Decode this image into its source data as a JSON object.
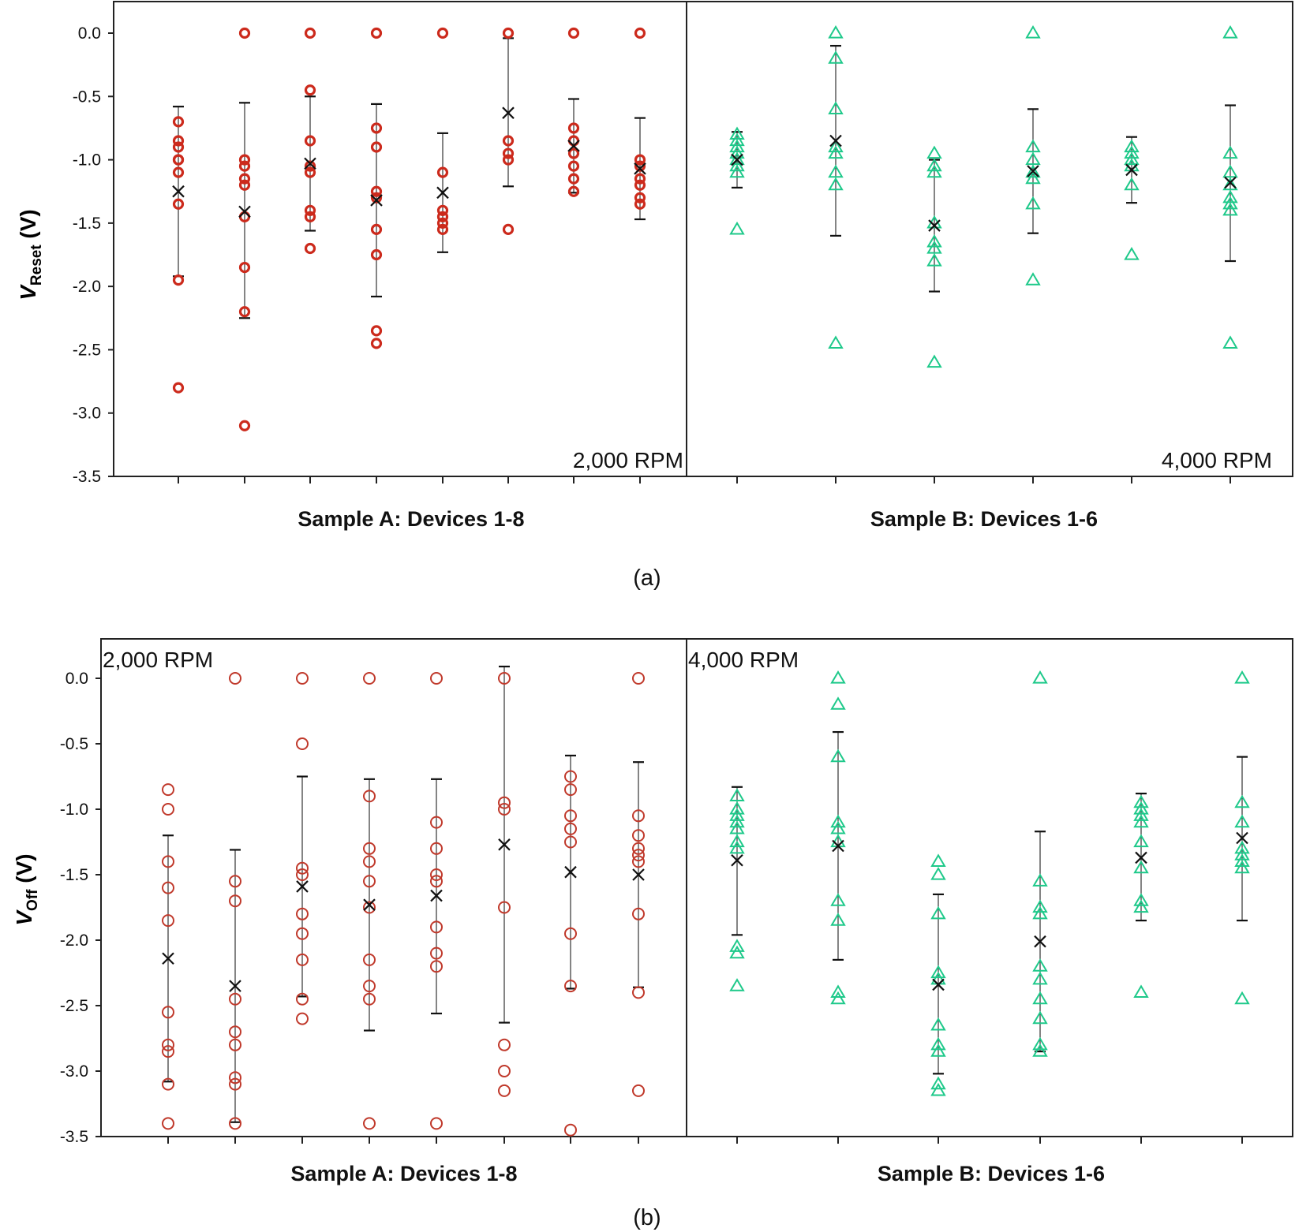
{
  "charts": [
    {
      "id": "a",
      "caption": "(a)",
      "ylabel_main": "V",
      "ylabel_sub": "Reset",
      "ylabel_unit": " (V)",
      "yticks": [
        0.0,
        -0.5,
        -1.0,
        -1.5,
        -2.0,
        -2.5,
        -3.0,
        -3.5
      ],
      "ytick_labels": [
        "0.0",
        "-0.5",
        "-1.0",
        "-1.5",
        "-2.0",
        "-2.5",
        "-3.0",
        "-3.5"
      ],
      "groups": [
        {
          "label": "Sample A: Devices 1-8",
          "rpm": "2,000 RPM",
          "color": "#cc2a1c",
          "marker": "circle",
          "devices": [
            {
              "points": [
                -0.7,
                -0.85,
                -0.9,
                -1.0,
                -1.0,
                -1.1,
                -1.35,
                -1.95,
                -2.8
              ],
              "mean": -1.25,
              "err_high": -0.58,
              "err_low": -1.92
            },
            {
              "points": [
                0.0,
                -1.0,
                -1.05,
                -1.15,
                -1.2,
                -1.45,
                -1.85,
                -2.2,
                -3.1
              ],
              "mean": -1.41,
              "err_high": -0.55,
              "err_low": -2.25
            },
            {
              "points": [
                0.0,
                -0.45,
                -0.85,
                -1.05,
                -1.1,
                -1.4,
                -1.45,
                -1.7
              ],
              "mean": -1.03,
              "err_high": -0.5,
              "err_low": -1.56
            },
            {
              "points": [
                0.0,
                -0.75,
                -0.9,
                -1.25,
                -1.3,
                -1.55,
                -1.75,
                -2.35,
                -2.45
              ],
              "mean": -1.32,
              "err_high": -0.56,
              "err_low": -2.08
            },
            {
              "points": [
                0.0,
                -1.1,
                -1.4,
                -1.45,
                -1.5,
                -1.55
              ],
              "mean": -1.26,
              "err_high": -0.79,
              "err_low": -1.73
            },
            {
              "points": [
                0.0,
                -0.85,
                -0.95,
                -1.0,
                -1.55
              ],
              "mean": -0.63,
              "err_high": -0.04,
              "err_low": -1.21
            },
            {
              "points": [
                0.0,
                -0.75,
                -0.85,
                -0.95,
                -1.05,
                -1.15,
                -1.25
              ],
              "mean": -0.89,
              "err_high": -0.52,
              "err_low": -1.26
            },
            {
              "points": [
                0.0,
                -1.0,
                -1.05,
                -1.15,
                -1.2,
                -1.3,
                -1.35
              ],
              "mean": -1.07,
              "err_high": -0.67,
              "err_low": -1.47
            }
          ]
        },
        {
          "label": "Sample B: Devices 1-6",
          "rpm": "4,000 RPM",
          "color": "#1ec98a",
          "marker": "triangle",
          "devices": [
            {
              "points": [
                -0.8,
                -0.85,
                -0.9,
                -0.95,
                -1.0,
                -1.05,
                -1.1,
                -1.55
              ],
              "mean": -1.0,
              "err_high": -0.78,
              "err_low": -1.22
            },
            {
              "points": [
                0.0,
                -0.2,
                -0.6,
                -0.9,
                -0.95,
                -1.1,
                -1.2,
                -2.45
              ],
              "mean": -0.85,
              "err_high": -0.1,
              "err_low": -1.6
            },
            {
              "points": [
                -0.95,
                -1.05,
                -1.1,
                -1.5,
                -1.65,
                -1.7,
                -1.8,
                -2.6
              ],
              "mean": -1.52,
              "err_high": -1.0,
              "err_low": -2.04
            },
            {
              "points": [
                0.0,
                -0.9,
                -1.0,
                -1.1,
                -1.15,
                -1.35,
                -1.95
              ],
              "mean": -1.09,
              "err_high": -0.6,
              "err_low": -1.58
            },
            {
              "points": [
                -0.9,
                -0.95,
                -1.0,
                -1.05,
                -1.2,
                -1.75
              ],
              "mean": -1.08,
              "err_high": -0.82,
              "err_low": -1.34
            },
            {
              "points": [
                0.0,
                -0.95,
                -1.1,
                -1.2,
                -1.3,
                -1.35,
                -1.4,
                -2.45
              ],
              "mean": -1.18,
              "err_high": -0.57,
              "err_low": -1.8
            }
          ]
        }
      ]
    },
    {
      "id": "b",
      "caption": "(b)",
      "ylabel_main": "V",
      "ylabel_sub": "Off",
      "ylabel_unit": " (V)",
      "yticks": [
        0.0,
        -0.5,
        -1.0,
        -1.5,
        -2.0,
        -2.5,
        -3.0,
        -3.5
      ],
      "ytick_labels": [
        "0.0",
        "-0.5",
        "-1.0",
        "-1.5",
        "-2.0",
        "-2.5",
        "-3.0",
        "-3.5"
      ],
      "groups": [
        {
          "label": "Sample A: Devices 1-8",
          "rpm": "2,000 RPM",
          "color": "#c0392b",
          "marker": "circle",
          "devices": [
            {
              "points": [
                -0.85,
                -1.0,
                -1.4,
                -1.6,
                -1.85,
                -2.55,
                -2.8,
                -2.85,
                -3.1,
                -3.4
              ],
              "mean": -2.14,
              "err_high": -1.2,
              "err_low": -3.08
            },
            {
              "points": [
                0.0,
                -1.55,
                -1.7,
                -2.45,
                -2.7,
                -2.8,
                -3.05,
                -3.1,
                -3.4
              ],
              "mean": -2.35,
              "err_high": -1.31,
              "err_low": -3.39
            },
            {
              "points": [
                0.0,
                -0.5,
                -1.45,
                -1.5,
                -1.8,
                -1.95,
                -2.15,
                -2.45,
                -2.6
              ],
              "mean": -1.59,
              "err_high": -0.75,
              "err_low": -2.43
            },
            {
              "points": [
                0.0,
                -0.9,
                -1.3,
                -1.4,
                -1.55,
                -1.75,
                -2.15,
                -2.35,
                -2.45,
                -3.4
              ],
              "mean": -1.73,
              "err_high": -0.77,
              "err_low": -2.69
            },
            {
              "points": [
                0.0,
                -1.1,
                -1.3,
                -1.5,
                -1.55,
                -1.9,
                -2.1,
                -2.2,
                -3.4
              ],
              "mean": -1.66,
              "err_high": -0.77,
              "err_low": -2.56
            },
            {
              "points": [
                0.0,
                -0.95,
                -1.0,
                -1.75,
                -2.8,
                -3.0,
                -3.15
              ],
              "mean": -1.27,
              "err_high": 0.09,
              "err_low": -2.63
            },
            {
              "points": [
                -0.75,
                -0.85,
                -1.05,
                -1.15,
                -1.25,
                -1.95,
                -2.35,
                -3.45
              ],
              "mean": -1.48,
              "err_high": -0.59,
              "err_low": -2.37
            },
            {
              "points": [
                0.0,
                -1.05,
                -1.2,
                -1.3,
                -1.35,
                -1.4,
                -1.8,
                -2.4,
                -3.15
              ],
              "mean": -1.5,
              "err_high": -0.64,
              "err_low": -2.36
            }
          ]
        },
        {
          "label": "Sample B: Devices 1-6",
          "rpm": "4,000 RPM",
          "color": "#1ec98a",
          "marker": "triangle",
          "devices": [
            {
              "points": [
                -0.9,
                -1.0,
                -1.05,
                -1.1,
                -1.15,
                -1.25,
                -1.3,
                -2.05,
                -2.1,
                -2.35
              ],
              "mean": -1.39,
              "err_high": -0.83,
              "err_low": -1.96
            },
            {
              "points": [
                0.0,
                -0.2,
                -0.6,
                -1.1,
                -1.15,
                -1.25,
                -1.7,
                -1.85,
                -2.4,
                -2.45
              ],
              "mean": -1.28,
              "err_high": -0.41,
              "err_low": -2.15
            },
            {
              "points": [
                -1.4,
                -1.5,
                -1.8,
                -2.25,
                -2.3,
                -2.65,
                -2.8,
                -2.85,
                -3.1,
                -3.15
              ],
              "mean": -2.34,
              "err_high": -1.65,
              "err_low": -3.02
            },
            {
              "points": [
                0.0,
                -1.55,
                -1.75,
                -1.8,
                -2.2,
                -2.3,
                -2.45,
                -2.6,
                -2.8,
                -2.85
              ],
              "mean": -2.01,
              "err_high": -1.17,
              "err_low": -2.85
            },
            {
              "points": [
                -0.95,
                -1.0,
                -1.05,
                -1.1,
                -1.25,
                -1.45,
                -1.7,
                -1.75,
                -2.4
              ],
              "mean": -1.37,
              "err_high": -0.88,
              "err_low": -1.85
            },
            {
              "points": [
                0.0,
                -0.95,
                -1.1,
                -1.3,
                -1.35,
                -1.4,
                -1.45,
                -2.45
              ],
              "mean": -1.22,
              "err_high": -0.6,
              "err_low": -1.85
            }
          ]
        }
      ]
    }
  ]
}
